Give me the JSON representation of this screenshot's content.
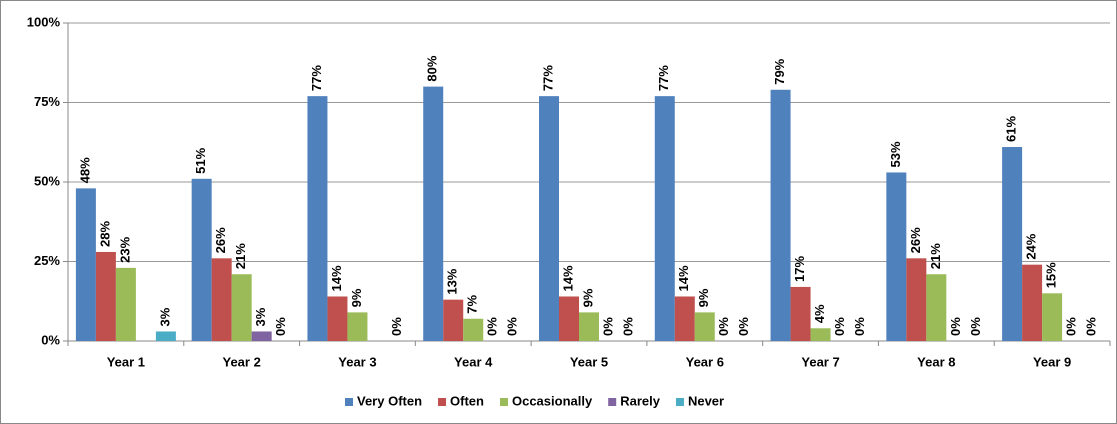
{
  "chart_data": {
    "type": "bar",
    "categories": [
      "Year 1",
      "Year 2",
      "Year 3",
      "Year 4",
      "Year 5",
      "Year 6",
      "Year 7",
      "Year 8",
      "Year 9"
    ],
    "series": [
      {
        "name": "Very Often",
        "color": "#4f81bd",
        "values": [
          48,
          51,
          77,
          80,
          77,
          77,
          79,
          53,
          61
        ],
        "value_labels": [
          "48%",
          "51%",
          "77%",
          "80%",
          "77%",
          "77%",
          "79%",
          "53%",
          "61%"
        ]
      },
      {
        "name": "Often",
        "color": "#c0504d",
        "values": [
          28,
          26,
          14,
          13,
          14,
          14,
          17,
          26,
          24
        ],
        "value_labels": [
          "28%",
          "26%",
          "14%",
          "13%",
          "14%",
          "14%",
          "17%",
          "26%",
          "24%"
        ]
      },
      {
        "name": "Occasionally",
        "color": "#9bbb59",
        "values": [
          23,
          21,
          9,
          7,
          9,
          9,
          4,
          21,
          15
        ],
        "value_labels": [
          "23%",
          "21%",
          "9%",
          "7%",
          "9%",
          "9%",
          "4%",
          "21%",
          "15%"
        ]
      },
      {
        "name": "Rarely",
        "color": "#8064a2",
        "values": [
          null,
          3,
          null,
          0,
          0,
          0,
          0,
          0,
          0
        ],
        "value_labels": [
          null,
          "3%",
          null,
          "0%",
          "0%",
          "0%",
          "0%",
          "0%",
          "0%"
        ]
      },
      {
        "name": "Never",
        "color": "#4bacc6",
        "values": [
          3,
          0,
          0,
          0,
          0,
          0,
          0,
          0,
          0
        ],
        "value_labels": [
          "3%",
          "0%",
          "0%",
          "0%",
          "0%",
          "0%",
          "0%",
          "0%",
          "0%"
        ]
      }
    ],
    "ylim": [
      0,
      100
    ],
    "yticks": [
      {
        "value": 0,
        "label": "0%"
      },
      {
        "value": 25,
        "label": "25%"
      },
      {
        "value": 50,
        "label": "50%"
      },
      {
        "value": 75,
        "label": "75%"
      },
      {
        "value": 100,
        "label": "100%"
      }
    ],
    "grid": true,
    "legend": "bottom"
  }
}
